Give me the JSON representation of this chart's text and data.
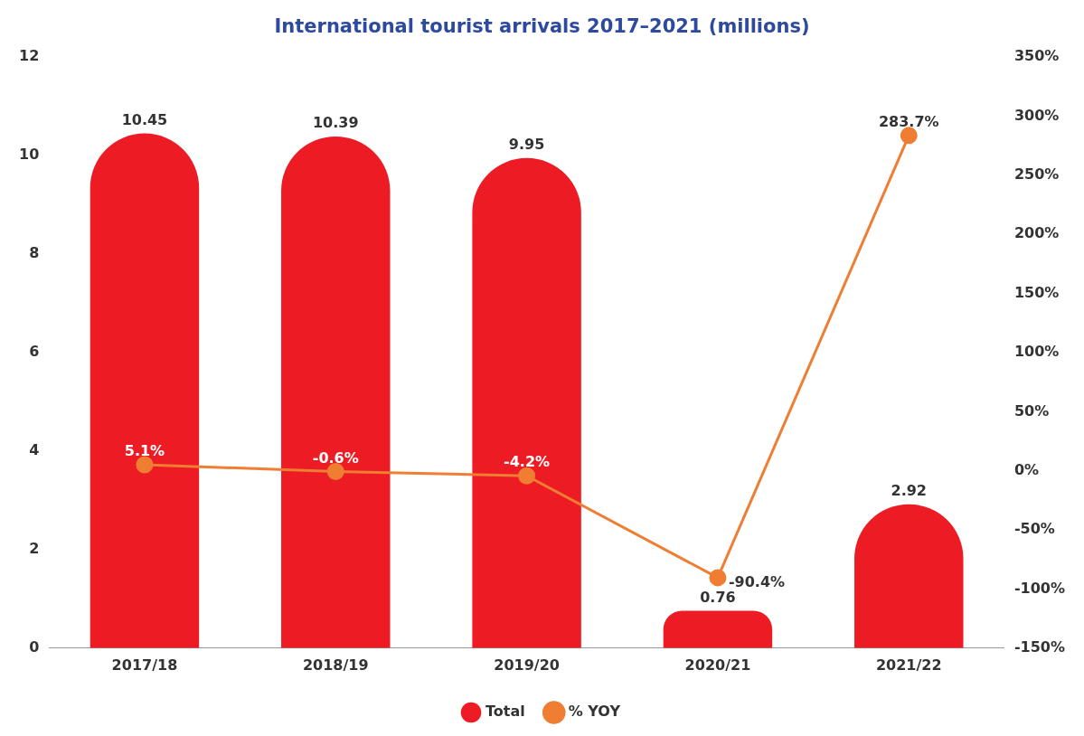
{
  "chart_data": {
    "type": "bar",
    "title": "International tourist arrivals 2017–2021 (millions)",
    "categories": [
      "2017/18",
      "2018/19",
      "2019/20",
      "2020/21",
      "2021/22"
    ],
    "series": [
      {
        "name": "Total",
        "color": "#ed1c24",
        "values": [
          10.45,
          10.39,
          9.95,
          0.76,
          2.92
        ]
      },
      {
        "name": "% YOY",
        "type": "line",
        "axis": "y2",
        "color": "#ef7d32",
        "values": [
          5.1,
          -0.6,
          -4.2,
          -90.4,
          283.7
        ],
        "value_labels": [
          "5.1%",
          "-0.6%",
          "-4.2%",
          "-90.4%",
          "283.7%"
        ]
      }
    ],
    "ylim": [
      0,
      12
    ],
    "yticks": [
      0,
      2,
      4,
      6,
      8,
      10,
      12
    ],
    "y2lim": [
      -150,
      350
    ],
    "y2ticks": [
      {
        "value": -150,
        "label": "-150%"
      },
      {
        "value": -100,
        "label": "-100%"
      },
      {
        "value": -50,
        "label": "-50%"
      },
      {
        "value": 0,
        "label": "0%"
      },
      {
        "value": 50,
        "label": "50%"
      },
      {
        "value": 100,
        "label": "100%"
      },
      {
        "value": 150,
        "label": "150%"
      },
      {
        "value": 200,
        "label": "200%"
      },
      {
        "value": 250,
        "label": "250%"
      },
      {
        "value": 300,
        "label": "300%"
      },
      {
        "value": 350,
        "label": "350%"
      }
    ],
    "grid": false,
    "legend": "bottom",
    "marker": "circle",
    "data_labels": true
  }
}
